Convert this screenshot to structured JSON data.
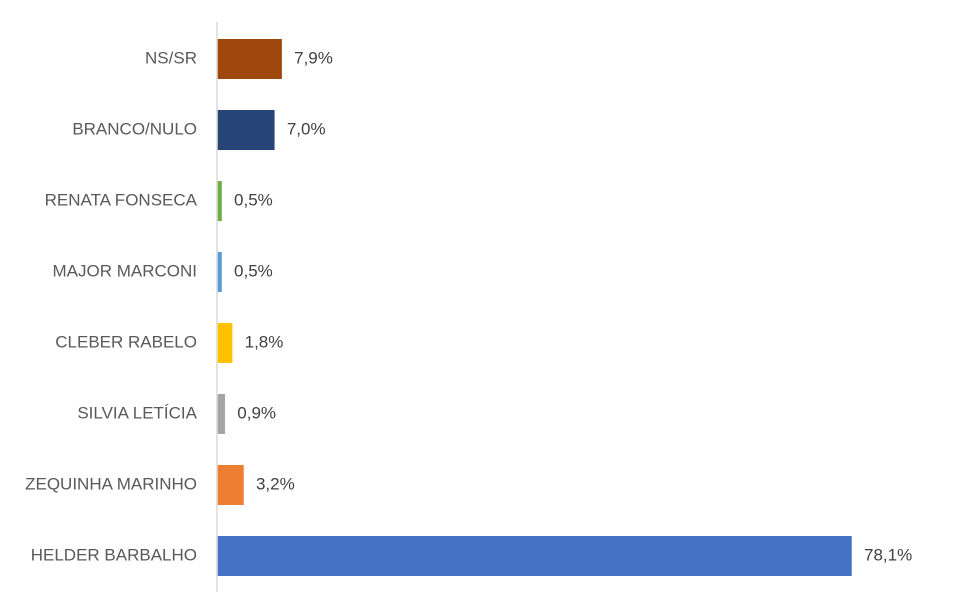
{
  "chart_data": {
    "type": "bar",
    "orientation": "horizontal",
    "title": "",
    "xlabel": "",
    "ylabel": "",
    "categories": [
      "NS/SR",
      "BRANCO/NULO",
      "RENATA FONSECA",
      "MAJOR MARCONI",
      "CLEBER RABELO",
      "SILVIA LETÍCIA",
      "ZEQUINHA MARINHO",
      "HELDER BARBALHO"
    ],
    "values": [
      7.9,
      7.0,
      0.5,
      0.5,
      1.8,
      0.9,
      3.2,
      78.1
    ],
    "value_labels": [
      "7,9%",
      "7,0%",
      "0,5%",
      "0,5%",
      "1,8%",
      "0,9%",
      "3,2%",
      "78,1%"
    ],
    "colors": [
      "#9E480E",
      "#264478",
      "#70AD47",
      "#5B9BD5",
      "#FFC000",
      "#A5A5A5",
      "#ED7D31",
      "#4472C4"
    ],
    "xlim": [
      0,
      80
    ],
    "grid": false,
    "legend": "none",
    "axis_color": "#D9D9D9"
  }
}
